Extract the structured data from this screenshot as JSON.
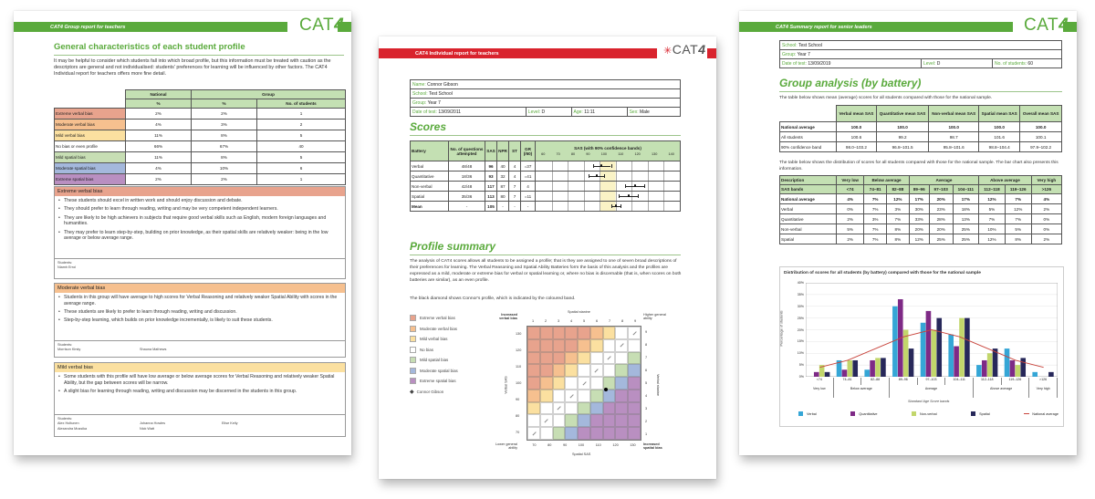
{
  "group_report": {
    "banner": "CAT4 Group report for teachers",
    "logo": "CAT",
    "logo_num": "4",
    "banner_color": "#5aaa3c",
    "title": "General characteristics of each student profile",
    "intro": "It may be helpful to consider which students fall into which broad profile, but this information must be treated with caution as the descriptors are general and not individualised: students' preferences for learning will be influenced by other factors. The CAT4 Individual report for teachers offers more fine detail.",
    "table": {
      "col_national": "National",
      "col_group": "Group",
      "sub_pct": "%",
      "sub_pct2": "%",
      "sub_n": "No. of students",
      "rows": [
        {
          "label": "Extreme verbal bias",
          "national": "2%",
          "group": "2%",
          "n": "1"
        },
        {
          "label": "Moderate verbal bias",
          "national": "4%",
          "group": "3%",
          "n": "2"
        },
        {
          "label": "Mild verbal bias",
          "national": "11%",
          "group": "8%",
          "n": "5"
        },
        {
          "label": "No bias or even profile",
          "national": "66%",
          "group": "67%",
          "n": "40"
        },
        {
          "label": "Mild spatial bias",
          "national": "11%",
          "group": "8%",
          "n": "5"
        },
        {
          "label": "Moderate spatial bias",
          "national": "4%",
          "group": "10%",
          "n": "6"
        },
        {
          "label": "Extreme spatial bias",
          "national": "2%",
          "group": "2%",
          "n": "1"
        }
      ]
    },
    "sections": [
      {
        "title": "Extreme verbal bias",
        "bullets": [
          "These students should excel in written work and should enjoy discussion and debate.",
          "They should prefer to learn through reading, writing and may be very competent independent learners.",
          "They are likely to be high achievers in subjects that require good verbal skills such as English, modern foreign languages and humanities.",
          "They may prefer to learn step-by-step, building on prior knowledge, as their spatial skills are relatively weaker: being in the low average or below average range."
        ],
        "students_label": "Students:",
        "students": [
          "Niamh Errol"
        ]
      },
      {
        "title": "Moderate verbal bias",
        "bullets": [
          "Students in this group will have average to high scores for Verbal Reasoning and relatively weaker Spatial Ability with scores in the average range.",
          "These students are likely to prefer to learn through reading, writing and discussion.",
          "Step-by-step learning, which builds on prior knowledge incrementally, is likely to suit these students."
        ],
        "students_label": "Students:",
        "students": [
          "Morrison Kirsty",
          "Shauna Mathews"
        ]
      },
      {
        "title": "Mild verbal bias",
        "bullets": [
          "Some students with this profile will have low average or below average scores for Verbal Reasoning and relatively weaker Spatial Ability, but the gap between scores will be narrow.",
          "A slight bias for learning through reading, writing and discussion may be discerned in the students in this group."
        ],
        "students_label": "Students:",
        "students": [
          "Alex Holtunen",
          "Johanna Howles",
          "Elise Kelly",
          "Alexandra Mussika",
          "Nick Watt"
        ]
      }
    ]
  },
  "individual_report": {
    "banner": "CAT4 Individual report for teachers",
    "banner_color": "#d9232d",
    "logo": "CAT",
    "logo_num": "4",
    "info": {
      "name_label": "Name:",
      "name": "Connor Gibson",
      "school_label": "School:",
      "school": "Test School",
      "group_label": "Group:",
      "group": "Year 7",
      "date_label": "Date of test:",
      "date": "13/09/2011",
      "level_label": "Level:",
      "level": "D",
      "age_label": "Age:",
      "age": "11:11",
      "sex_label": "Sex:",
      "sex": "Male"
    },
    "scores_title": "Scores",
    "scores_table": {
      "headers": [
        "Battery",
        "No. of questions attempted",
        "SAS",
        "NPR",
        "ST",
        "GR (/60)",
        "SAS (with 90% confidence bands)"
      ],
      "scale": [
        "60",
        "70",
        "80",
        "90",
        "100",
        "110",
        "120",
        "130",
        "140"
      ],
      "rows": [
        {
          "battery": "Verbal",
          "attempted": "48/48",
          "sas": "96",
          "npr": "40",
          "st": "4",
          "gr": "=37",
          "low": 91,
          "high": 102
        },
        {
          "battery": "Quantitative",
          "attempted": "18/36",
          "sas": "93",
          "npr": "32",
          "st": "4",
          "gr": "=41",
          "low": 88,
          "high": 98
        },
        {
          "battery": "Non-verbal",
          "attempted": "42/48",
          "sas": "117",
          "npr": "87",
          "st": "7",
          "gr": "4",
          "low": 111,
          "high": 123
        },
        {
          "battery": "Spatial",
          "attempted": "35/36",
          "sas": "113",
          "npr": "80",
          "st": "7",
          "gr": "=11",
          "low": 107,
          "high": 119
        },
        {
          "battery": "Mean",
          "attempted": "-",
          "sas": "105",
          "npr": "-",
          "st": "-",
          "gr": "-",
          "low": 102,
          "high": 108
        }
      ]
    },
    "profile_title": "Profile summary",
    "profile_p1": "The analysis of CAT4 scores allows all students to be assigned a profile; that is they are assigned to one of seven broad descriptions of their preferences for learning. The Verbal Reasoning and Spatial Ability Batteries form the basis of this analysis and the profiles are expressed as a mild, moderate or extreme bias for verbal or spatial learning or, where no bias is discernable (that is, when scores on both batteries are similar), as an even profile.",
    "profile_p2": "The black diamond shows Connor's profile, which is indicated by the coloured band.",
    "legend": [
      {
        "label": "Extreme verbal bias",
        "cls": "c-ext-v"
      },
      {
        "label": "Moderate verbal bias",
        "cls": "c-mod-v"
      },
      {
        "label": "Mild verbal bias",
        "cls": "c-mild-v"
      },
      {
        "label": "No bias",
        "cls": "c-none"
      },
      {
        "label": "Mild spatial bias",
        "cls": "c-mild-s"
      },
      {
        "label": "Moderate spatial bias",
        "cls": "c-mod-s"
      },
      {
        "label": "Extreme spatial bias",
        "cls": "c-ext-s"
      }
    ],
    "legend_marker": "Connor Gibson",
    "grid": {
      "top_label": "Spatial stanine",
      "top_left": "Increased verbal bias",
      "top_right": "Higher general ability",
      "bottom_left": "Lower general ability",
      "bottom_right": "Increased spatial bias",
      "x_label": "Spatial SAS",
      "y_label": "Verbal SAS",
      "right_label": "Verbal stanine",
      "stanines": [
        "1",
        "2",
        "3",
        "4",
        "5",
        "6",
        "7",
        "8",
        "9"
      ],
      "sas_x": [
        "70",
        "80",
        "90",
        "100",
        "110",
        "120",
        "130"
      ],
      "sas_y": [
        "130",
        "120",
        "110",
        "100",
        "90",
        "80",
        "70"
      ],
      "rows": [
        [
          "E",
          "E",
          "E",
          "E",
          "E",
          "M",
          "Mi",
          "N",
          "N"
        ],
        [
          "E",
          "E",
          "E",
          "E",
          "M",
          "Mi",
          "N",
          "N",
          "N"
        ],
        [
          "E",
          "E",
          "E",
          "M",
          "Mi",
          "N",
          "N",
          "N",
          "Ms"
        ],
        [
          "E",
          "E",
          "M",
          "Mi",
          "N",
          "N",
          "N",
          "Ms",
          "Mo"
        ],
        [
          "E",
          "M",
          "Mi",
          "N",
          "N",
          "N",
          "Ms",
          "Mo",
          "X"
        ],
        [
          "M",
          "Mi",
          "N",
          "N",
          "N",
          "Ms",
          "Mo",
          "X",
          "X"
        ],
        [
          "Mi",
          "N",
          "N",
          "N",
          "Ms",
          "Mo",
          "X",
          "X",
          "X"
        ],
        [
          "N",
          "N",
          "N",
          "Ms",
          "Mo",
          "X",
          "X",
          "X",
          "X"
        ],
        [
          "N",
          "N",
          "Ms",
          "Mo",
          "X",
          "X",
          "X",
          "X",
          "X"
        ]
      ],
      "marker": {
        "spatial_sas": 113,
        "verbal_sas": 96
      }
    }
  },
  "summary_report": {
    "banner": "CAT4 Summary report for senior leaders",
    "banner_color": "#5aaa3c",
    "logo": "CAT",
    "logo_num": "4",
    "info": {
      "school_label": "School:",
      "school": "Test School",
      "group_label": "Group:",
      "group": "Year 7",
      "date_label": "Date of test:",
      "date": "13/09/2019",
      "level_label": "Level:",
      "level": "D",
      "n_label": "No. of students:",
      "n": "60"
    },
    "title": "Group analysis (by battery)",
    "p1": "The table below shows mean (average) scores for all students compared with those for the national sample.",
    "mean_table": {
      "headers": [
        "Verbal mean SAS",
        "Quantitative mean SAS",
        "Non-verbal mean SAS",
        "Spatial mean SAS",
        "Overall mean SAS"
      ],
      "rows": [
        {
          "label": "National average",
          "vals": [
            "100.0",
            "100.0",
            "100.0",
            "100.0",
            "100.0"
          ],
          "bold": true
        },
        {
          "label": "All students",
          "vals": [
            "100.6",
            "99.2",
            "98.7",
            "101.6",
            "100.1"
          ],
          "bold": false
        },
        {
          "label": "90% confidence band",
          "vals": [
            "98.0–103.2",
            "96.8–101.5",
            "95.8–101.6",
            "98.8–104.4",
            "97.9–102.2"
          ],
          "bold": false
        }
      ]
    },
    "p2": "The table below shows the distribution of scores for all students compared with those for the national sample. The bar chart also presents this information.",
    "dist_table": {
      "desc_label": "Description",
      "desc_groups": [
        {
          "label": "Very low",
          "span": 1
        },
        {
          "label": "Below average",
          "span": 2
        },
        {
          "label": "Average",
          "span": 3
        },
        {
          "label": "Above average",
          "span": 2
        },
        {
          "label": "Very high",
          "span": 1
        }
      ],
      "bands_label": "SAS bands",
      "bands": [
        "<74",
        "74–81",
        "82–88",
        "89–96",
        "97–103",
        "104–111",
        "112–118",
        "119–126",
        ">126"
      ],
      "rows": [
        {
          "label": "National average",
          "vals": [
            "4%",
            "7%",
            "12%",
            "17%",
            "20%",
            "17%",
            "12%",
            "7%",
            "4%"
          ],
          "bold": true
        },
        {
          "label": "Verbal",
          "vals": [
            "0%",
            "7%",
            "3%",
            "30%",
            "23%",
            "18%",
            "5%",
            "12%",
            "2%"
          ],
          "bold": false
        },
        {
          "label": "Quantitative",
          "vals": [
            "2%",
            "3%",
            "7%",
            "33%",
            "28%",
            "13%",
            "7%",
            "7%",
            "0%"
          ],
          "bold": false
        },
        {
          "label": "Non-verbal",
          "vals": [
            "5%",
            "7%",
            "8%",
            "20%",
            "20%",
            "25%",
            "10%",
            "5%",
            "0%"
          ],
          "bold": false
        },
        {
          "label": "Spatial",
          "vals": [
            "2%",
            "7%",
            "8%",
            "12%",
            "25%",
            "25%",
            "12%",
            "8%",
            "2%"
          ],
          "bold": false
        }
      ]
    }
  },
  "chart_data": {
    "type": "bar",
    "title": "Distribution of scores for all students (by battery) compared with those for the national sample",
    "xlabel": "Standard Age Score bands",
    "ylabel": "Percentage of students",
    "ylim": [
      0,
      40
    ],
    "yticks": [
      "0%",
      "5%",
      "10%",
      "15%",
      "20%",
      "25%",
      "30%",
      "35%",
      "40%"
    ],
    "categories": [
      "<74",
      "74–81",
      "82–88",
      "89–96",
      "97–103",
      "104–111",
      "112–118",
      "119–126",
      ">126"
    ],
    "category_groups": [
      {
        "label": "Very low",
        "span": 1
      },
      {
        "label": "Below average",
        "span": 2
      },
      {
        "label": "Average",
        "span": 3
      },
      {
        "label": "Above average",
        "span": 2
      },
      {
        "label": "Very high",
        "span": 1
      }
    ],
    "series": [
      {
        "name": "Verbal",
        "color": "#35a6d6",
        "values": [
          0,
          7,
          3,
          30,
          23,
          18,
          5,
          12,
          2
        ]
      },
      {
        "name": "Quantitative",
        "color": "#7e2a86",
        "values": [
          2,
          3,
          7,
          33,
          28,
          13,
          7,
          7,
          0
        ]
      },
      {
        "name": "Non-verbal",
        "color": "#c2d66b",
        "values": [
          5,
          7,
          8,
          20,
          20,
          25,
          10,
          5,
          0
        ]
      },
      {
        "name": "Spatial",
        "color": "#27285a",
        "values": [
          2,
          7,
          8,
          12,
          25,
          25,
          12,
          8,
          2
        ]
      }
    ],
    "line": {
      "name": "National average",
      "color": "#c8443c",
      "values": [
        4,
        7,
        12,
        17,
        20,
        17,
        12,
        7,
        4
      ]
    },
    "grid": true,
    "legend_position": "bottom"
  }
}
